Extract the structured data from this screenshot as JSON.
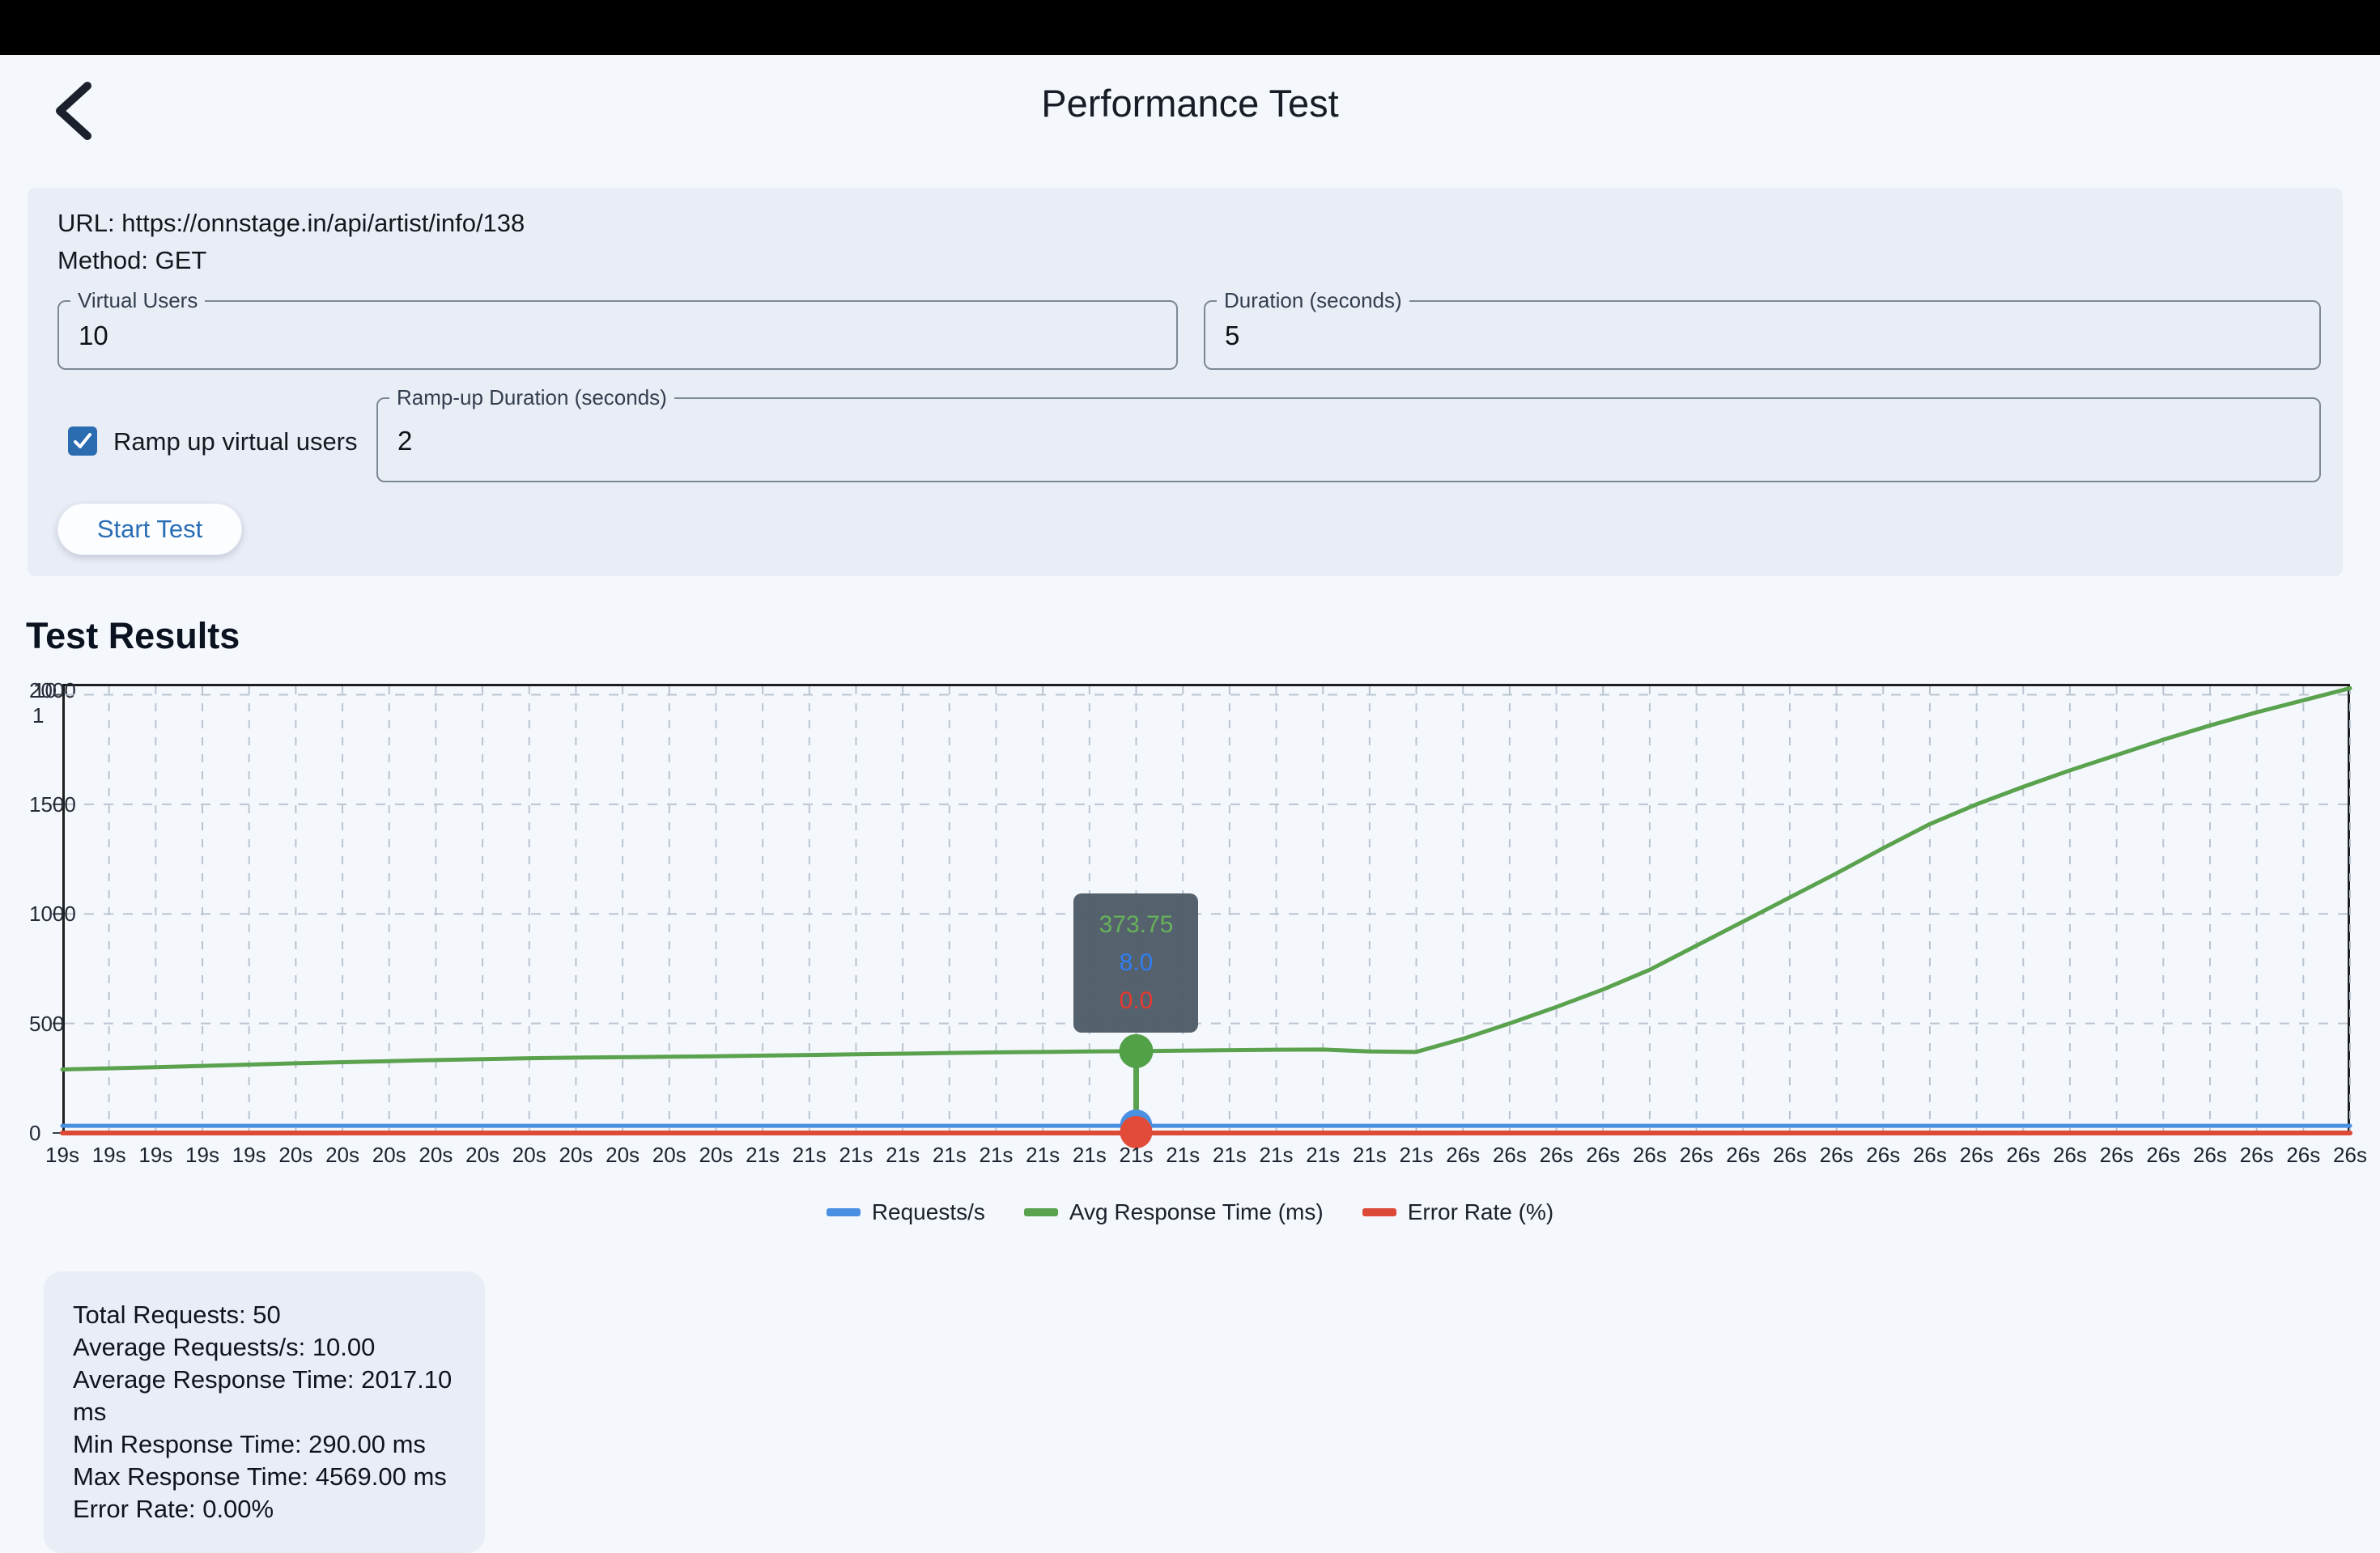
{
  "header": {
    "title": "Performance Test"
  },
  "form": {
    "url_line": "URL: https://onnstage.in/api/artist/info/138",
    "method_line": "Method: GET",
    "fields": {
      "virtual_users": {
        "label": "Virtual Users",
        "value": "10"
      },
      "duration": {
        "label": "Duration (seconds)",
        "value": "5"
      },
      "ramp_up_duration": {
        "label": "Ramp-up Duration (seconds)",
        "value": "2"
      }
    },
    "ramp_checkbox": {
      "checked": true,
      "label": "Ramp up virtual users"
    },
    "start_button": "Start Test"
  },
  "results": {
    "heading": "Test Results"
  },
  "chart_data": {
    "type": "line",
    "x_tick_labels": [
      "19s",
      "19s",
      "19s",
      "19s",
      "19s",
      "20s",
      "20s",
      "20s",
      "20s",
      "20s",
      "20s",
      "20s",
      "20s",
      "20s",
      "20s",
      "21s",
      "21s",
      "21s",
      "21s",
      "21s",
      "21s",
      "21s",
      "21s",
      "21s",
      "21s",
      "21s",
      "21s",
      "21s",
      "21s",
      "21s",
      "26s",
      "26s",
      "26s",
      "26s",
      "26s",
      "26s",
      "26s",
      "26s",
      "26s",
      "26s",
      "26s",
      "26s",
      "26s",
      "26s",
      "26s",
      "26s",
      "26s",
      "26s",
      "26s",
      "26s"
    ],
    "series": [
      {
        "name": "Requests/s",
        "color": "#4a90e2",
        "axis_max": 500,
        "stroke_width": 5,
        "constant": 8
      },
      {
        "name": "Avg Response Time (ms)",
        "color": "#5aa24e",
        "axis_max": 2050,
        "stroke_width": 5,
        "values": [
          290,
          295,
          300,
          306,
          312,
          318,
          323,
          328,
          333,
          337,
          341,
          344,
          346,
          348,
          350,
          353,
          356,
          359,
          362,
          365,
          368,
          370,
          372,
          373.75,
          376,
          378,
          380,
          381,
          372,
          370,
          430,
          500,
          575,
          655,
          745,
          855,
          965,
          1075,
          1185,
          1300,
          1410,
          1500,
          1580,
          1655,
          1725,
          1795,
          1860,
          1920,
          1975,
          2030
        ]
      },
      {
        "name": "Error Rate (%)",
        "color": "#dc4936",
        "axis_max": 1,
        "stroke_width": 6,
        "constant": 0
      }
    ],
    "y_axis": {
      "max": 2050,
      "label_ticks": [
        0,
        500,
        1000,
        1500
      ],
      "grid_ticks": [
        500,
        1000,
        1500,
        2000
      ],
      "top_cluster": {
        "a": "2000",
        "b": "10",
        "c": "1"
      }
    },
    "grid": "dashed",
    "legend_position": "bottom",
    "tooltip": {
      "index": 23,
      "values": [
        {
          "text": "373.75",
          "color": "#66b25a"
        },
        {
          "text": "8.0",
          "color": "#2e7ef0"
        },
        {
          "text": "0.0",
          "color": "#e8392e"
        }
      ]
    }
  },
  "stats": {
    "lines": [
      "Total Requests: 50",
      "Average Requests/s: 10.00",
      "Average Response Time: 2017.10 ms",
      "Min Response Time: 290.00 ms",
      "Max Response Time: 4569.00 ms",
      "Error Rate: 0.00%"
    ]
  }
}
